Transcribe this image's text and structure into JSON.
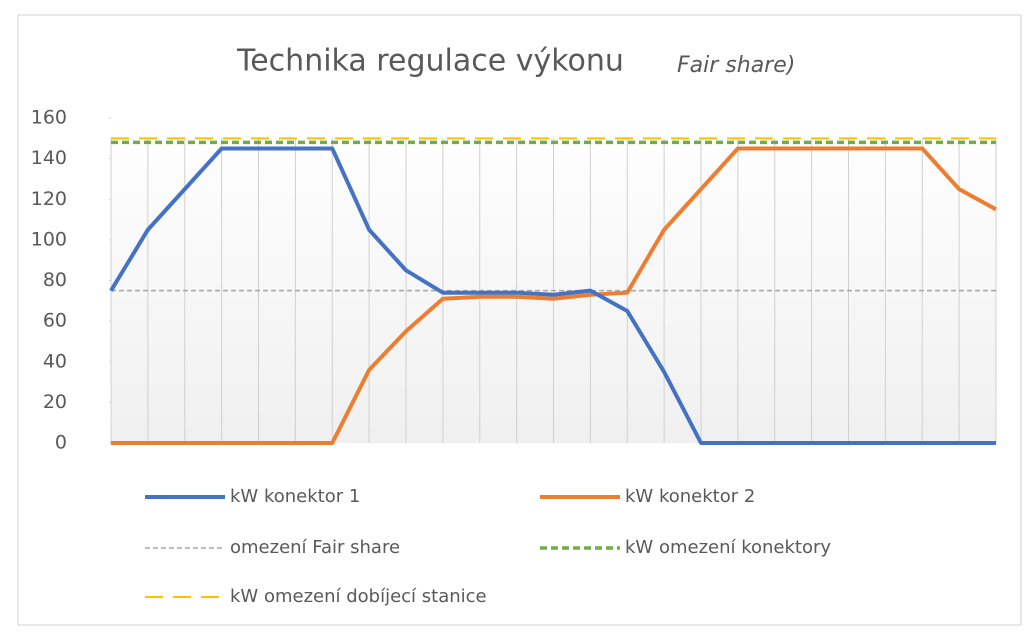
{
  "chart_data": {
    "type": "line",
    "title": "Technika  regulace  výkonu",
    "title_suffix": "Fair share)",
    "categories": [
      null,
      null,
      null,
      null,
      null,
      null,
      null,
      null,
      null,
      null,
      null,
      null,
      null,
      null,
      null,
      null,
      null,
      null,
      null,
      null,
      null,
      null,
      null,
      null,
      null
    ],
    "series": [
      {
        "name": "kW konektor 1",
        "color": "#4472c4",
        "dash": "solid",
        "values": [
          75,
          105,
          125,
          145,
          145,
          145,
          145,
          105,
          85,
          74,
          74,
          74,
          73,
          75,
          65,
          35,
          0,
          0,
          0,
          0,
          0,
          0,
          0,
          0,
          0
        ]
      },
      {
        "name": "kW konektor 2",
        "color": "#ed7d31",
        "dash": "solid",
        "values": [
          0,
          0,
          0,
          0,
          0,
          0,
          0,
          36,
          55,
          71,
          72,
          72,
          71,
          73,
          74,
          105,
          125,
          145,
          145,
          145,
          145,
          145,
          145,
          125,
          115
        ]
      },
      {
        "name": "omezení Fair share",
        "color": "#a5a5a5",
        "dash": "dotted",
        "values": [
          75,
          75,
          75,
          75,
          75,
          75,
          75,
          75,
          75,
          75,
          75,
          75,
          75,
          75,
          75,
          75,
          75,
          75,
          75,
          75,
          75,
          75,
          75,
          75,
          75
        ]
      },
      {
        "name": "kW omezení konektory",
        "color": "#70ad47",
        "dash": "dashed",
        "values": [
          148,
          148,
          148,
          148,
          148,
          148,
          148,
          148,
          148,
          148,
          148,
          148,
          148,
          148,
          148,
          148,
          148,
          148,
          148,
          148,
          148,
          148,
          148,
          148,
          148
        ]
      },
      {
        "name": "kW omezení dobíjecí stanice",
        "color": "#ffc000",
        "dash": "longdash",
        "values": [
          150,
          150,
          150,
          150,
          150,
          150,
          150,
          150,
          150,
          150,
          150,
          150,
          150,
          150,
          150,
          150,
          150,
          150,
          150,
          150,
          150,
          150,
          150,
          150,
          150
        ]
      }
    ],
    "ylim": [
      0,
      160
    ],
    "yticks": [
      0,
      20,
      40,
      60,
      80,
      100,
      120,
      140,
      160
    ],
    "grid": "vertical"
  }
}
